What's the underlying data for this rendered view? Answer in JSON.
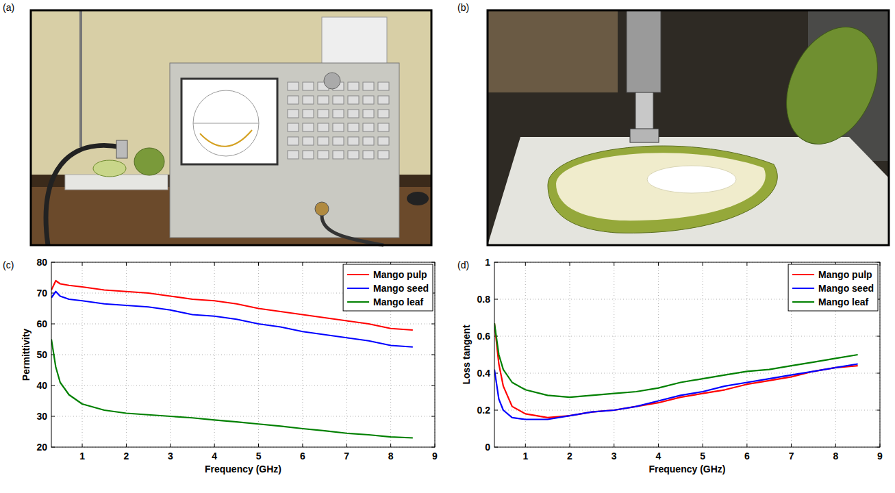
{
  "panels": [
    "(a)",
    "(b)",
    "(c)",
    "(d)"
  ],
  "chart_data": [
    {
      "type": "line",
      "xlabel": "Frequency (GHz)",
      "ylabel": "Permittivity",
      "x": [
        0.3,
        0.4,
        0.5,
        0.7,
        1,
        1.5,
        2,
        2.5,
        3,
        3.5,
        4,
        4.5,
        5,
        5.5,
        6,
        6.5,
        7,
        7.5,
        8,
        8.5
      ],
      "series": [
        {
          "name": "Mango pulp",
          "color": "#ff0000",
          "values": [
            71,
            74,
            73,
            72.5,
            72,
            71,
            70.5,
            70,
            69,
            68,
            67.5,
            66.5,
            65,
            64,
            63,
            62,
            61,
            60,
            58.5,
            58
          ]
        },
        {
          "name": "Mango seed",
          "color": "#0000ff",
          "values": [
            68.5,
            70.5,
            69,
            68,
            67.5,
            66.5,
            66,
            65.5,
            64.5,
            63,
            62.5,
            61.5,
            60,
            59,
            57.5,
            56.5,
            55.5,
            54.5,
            53,
            52.5
          ]
        },
        {
          "name": "Mango leaf",
          "color": "#008000",
          "values": [
            55,
            46,
            41,
            37,
            34,
            32,
            31,
            30.5,
            30,
            29.5,
            28.8,
            28.2,
            27.5,
            26.8,
            26,
            25.3,
            24.5,
            24,
            23.3,
            23
          ]
        }
      ],
      "xlim": [
        0.3,
        9
      ],
      "xticks": [
        1,
        2,
        3,
        4,
        5,
        6,
        7,
        8,
        9
      ],
      "ylim": [
        20,
        80
      ],
      "yticks": [
        20,
        30,
        40,
        50,
        60,
        70,
        80
      ],
      "grid": true,
      "legend": "upper right"
    },
    {
      "type": "line",
      "xlabel": "Frequency (GHz)",
      "ylabel": "Loss tangent",
      "x": [
        0.3,
        0.4,
        0.5,
        0.7,
        1,
        1.5,
        2,
        2.5,
        3,
        3.5,
        4,
        4.5,
        5,
        5.5,
        6,
        6.5,
        7,
        7.5,
        8,
        8.5
      ],
      "series": [
        {
          "name": "Mango pulp",
          "color": "#ff0000",
          "values": [
            0.67,
            0.45,
            0.33,
            0.22,
            0.18,
            0.16,
            0.17,
            0.19,
            0.2,
            0.22,
            0.24,
            0.27,
            0.29,
            0.31,
            0.34,
            0.36,
            0.38,
            0.41,
            0.43,
            0.44
          ]
        },
        {
          "name": "Mango seed",
          "color": "#0000ff",
          "values": [
            0.42,
            0.26,
            0.2,
            0.16,
            0.15,
            0.15,
            0.17,
            0.19,
            0.2,
            0.22,
            0.25,
            0.28,
            0.3,
            0.33,
            0.35,
            0.37,
            0.39,
            0.41,
            0.43,
            0.45
          ]
        },
        {
          "name": "Mango leaf",
          "color": "#008000",
          "values": [
            0.67,
            0.5,
            0.42,
            0.35,
            0.31,
            0.28,
            0.27,
            0.28,
            0.29,
            0.3,
            0.32,
            0.35,
            0.37,
            0.39,
            0.41,
            0.42,
            0.44,
            0.46,
            0.48,
            0.5
          ]
        }
      ],
      "xlim": [
        0.3,
        9
      ],
      "xticks": [
        1,
        2,
        3,
        4,
        5,
        6,
        7,
        8,
        9
      ],
      "ylim": [
        0,
        1
      ],
      "yticks": [
        0,
        0.2,
        0.4,
        0.6,
        0.8,
        1
      ],
      "grid": true,
      "legend": "upper right"
    }
  ]
}
